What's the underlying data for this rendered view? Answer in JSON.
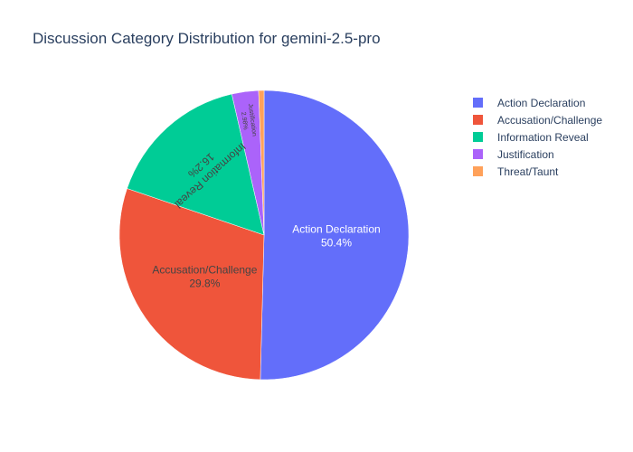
{
  "chart_data": {
    "type": "pie",
    "title": "Discussion Category Distribution for gemini-2.5-pro",
    "categories": [
      "Action Declaration",
      "Accusation/Challenge",
      "Information Reveal",
      "Justification",
      "Threat/Taunt"
    ],
    "values": [
      50.4,
      29.8,
      16.2,
      2.98,
      0.6
    ],
    "percent_labels": [
      "50.4%",
      "29.8%",
      "16.2%",
      "2.98%",
      ""
    ],
    "colors": [
      "#636efa",
      "#ef553b",
      "#00cc96",
      "#ab63fa",
      "#ffa15a"
    ],
    "direction": "clockwise",
    "start_angle": "top",
    "legend_position": "top-right"
  }
}
